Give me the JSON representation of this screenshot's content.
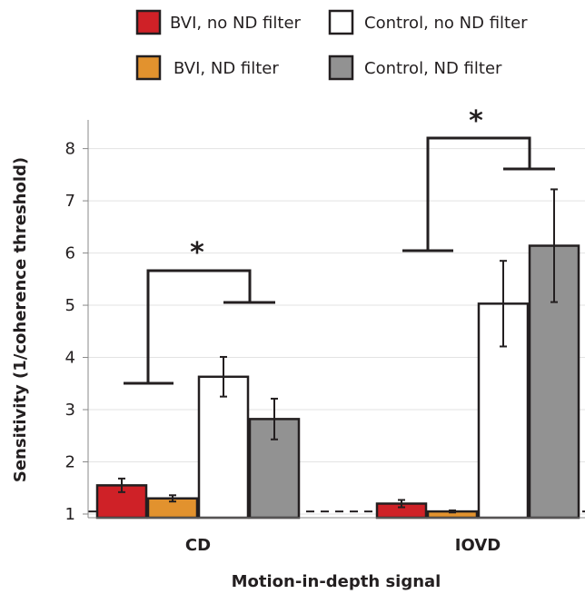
{
  "chart_data": {
    "type": "bar",
    "title": "",
    "xlabel": "Motion-in-depth signal",
    "ylabel": "Sensitivity (1/coherence threshold)",
    "ylim": [
      0.93,
      8.55
    ],
    "yticks": [
      1,
      2,
      3,
      4,
      5,
      6,
      7,
      8
    ],
    "categories": [
      "CD",
      "IOVD"
    ],
    "legend_position": "top",
    "grid": true,
    "baseline_value": 1.05,
    "series": [
      {
        "name": "BVI, no ND filter",
        "color": "#cf2127",
        "values": [
          1.55,
          1.2
        ],
        "errors": [
          0.13,
          0.07
        ]
      },
      {
        "name": "BVI, ND filter",
        "color": "#e2922e",
        "values": [
          1.3,
          1.05
        ],
        "errors": [
          0.06,
          0.02
        ]
      },
      {
        "name": "Control, no ND filter",
        "color": "#ffffff",
        "values": [
          3.63,
          5.03
        ],
        "errors": [
          0.38,
          0.82
        ]
      },
      {
        "name": "Control, ND filter",
        "color": "#929292",
        "values": [
          2.82,
          6.14
        ],
        "errors": [
          0.39,
          1.08
        ]
      }
    ],
    "significance": [
      {
        "category": "CD",
        "label": "*"
      },
      {
        "category": "IOVD",
        "label": "*"
      }
    ]
  }
}
